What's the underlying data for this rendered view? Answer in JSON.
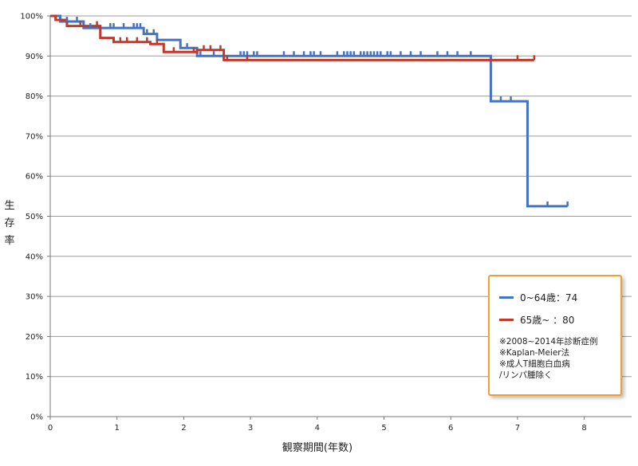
{
  "chart_data": {
    "type": "line",
    "title": "",
    "xlabel": "観察期間(年数)",
    "ylabel": "生存率",
    "xlim": [
      0,
      8.8
    ],
    "ylim": [
      0,
      100
    ],
    "x_ticks": [
      "0",
      "1",
      "2",
      "3",
      "4",
      "5",
      "6",
      "7",
      "8"
    ],
    "y_ticks": [
      "0%",
      "10%",
      "20%",
      "30%",
      "40%",
      "50%",
      "60%",
      "70%",
      "80%",
      "90%",
      "100%"
    ],
    "grid": "horizontal",
    "step": true,
    "legend_position": "bottom-right",
    "series": [
      {
        "name": "0~64歳：74",
        "color": "#4472c4",
        "x": [
          0,
          0.15,
          0.5,
          1.4,
          1.6,
          1.95,
          2.2,
          6.6,
          7.15,
          7.75
        ],
        "y": [
          100,
          98.6,
          97.0,
          95.5,
          94.0,
          92.0,
          90.0,
          78.7,
          52.5,
          52.5
        ],
        "censored_x": [
          0.25,
          0.4,
          0.6,
          0.9,
          0.95,
          1.1,
          1.25,
          1.3,
          1.35,
          1.45,
          1.55,
          2.05,
          2.25,
          2.45,
          2.85,
          2.9,
          2.95,
          3.05,
          3.1,
          3.5,
          3.65,
          3.8,
          3.9,
          3.95,
          4.05,
          4.3,
          4.4,
          4.45,
          4.5,
          4.55,
          4.65,
          4.7,
          4.75,
          4.8,
          4.85,
          4.9,
          4.95,
          5.05,
          5.1,
          5.25,
          5.4,
          5.55,
          5.8,
          5.95,
          6.1,
          6.3,
          6.75,
          6.9,
          7.45,
          7.75
        ]
      },
      {
        "name": "65歳~ ：80",
        "color": "#c0392b",
        "x": [
          0,
          0.08,
          0.25,
          0.75,
          0.95,
          1.5,
          1.7,
          2.2,
          2.6,
          7.25
        ],
        "y": [
          100,
          99.0,
          97.5,
          94.5,
          93.5,
          93.0,
          91.0,
          91.5,
          89.0,
          89.0
        ],
        "censored_x": [
          0.45,
          0.7,
          0.95,
          1.05,
          1.15,
          1.3,
          1.45,
          1.6,
          1.85,
          2.15,
          2.3,
          2.4,
          2.55,
          2.65,
          2.95,
          7.0,
          7.25
        ]
      }
    ],
    "notes": [
      "※2008~2014年診断症例",
      "※Kaplan-Meier法",
      "※成人T細胞白血病",
      "/リンパ腫除く"
    ]
  }
}
